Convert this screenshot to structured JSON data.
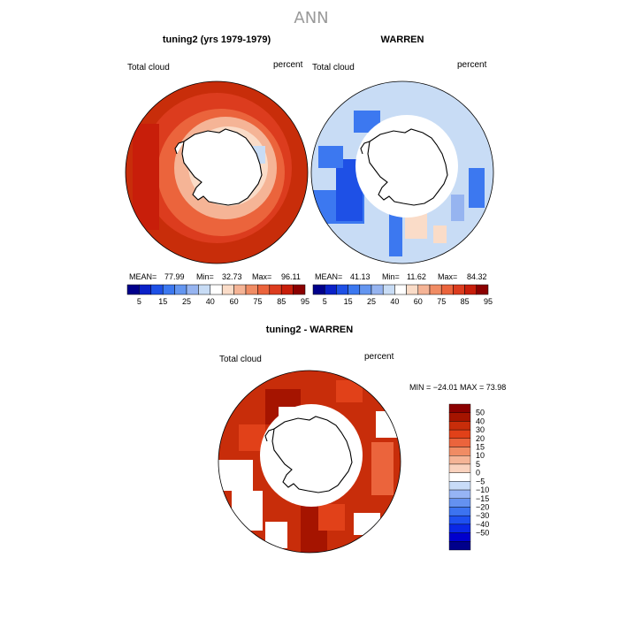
{
  "figure": {
    "title": "ANN",
    "colors": {
      "abs_scale": [
        "#00008b",
        "#0a21c8",
        "#1e50e6",
        "#3c78f0",
        "#6496f0",
        "#96b4f0",
        "#c8dcf5",
        "#ffffff",
        "#fadcc8",
        "#f5b496",
        "#f08c64",
        "#eb643c",
        "#dc3c1e",
        "#c81e0a",
        "#8b0000"
      ],
      "diff_scale": [
        "#00008b",
        "#0000cd",
        "#0a28e6",
        "#1e50f0",
        "#3c73f0",
        "#6491f0",
        "#96b4f5",
        "#c8dcf8",
        "#ffffff",
        "#fad2be",
        "#f5b496",
        "#f08c64",
        "#eb643c",
        "#e14119",
        "#c82d0a",
        "#a51400",
        "#8b0000"
      ]
    }
  },
  "panels": {
    "model": {
      "title": "tuning2 (yrs 1979-1979)",
      "variable": "Total cloud",
      "units": "percent",
      "stats": {
        "mean_label": "MEAN=",
        "mean": "77.99",
        "min_label": "Min=",
        "min": "32.73",
        "max_label": "Max=",
        "max": "96.11"
      }
    },
    "obs": {
      "title": "WARREN",
      "variable": "Total cloud",
      "units": "percent",
      "stats": {
        "mean_label": "MEAN=",
        "mean": "41.13",
        "min_label": "Min=",
        "min": "11.62",
        "max_label": "Max=",
        "max": "84.32"
      }
    },
    "diff": {
      "title": "tuning2 - WARREN",
      "variable": "Total cloud",
      "units": "percent",
      "range_text": "MIN = −24.01 MAX =  73.98"
    }
  },
  "colorbar_abs": {
    "labels": [
      "5",
      "15",
      "25",
      "40",
      "60",
      "75",
      "85",
      "95"
    ]
  },
  "colorbar_diff": {
    "labels": [
      "50",
      "40",
      "30",
      "20",
      "15",
      "10",
      "5",
      "0",
      "−5",
      "−10",
      "−15",
      "−20",
      "−30",
      "−40",
      "−50"
    ]
  }
}
